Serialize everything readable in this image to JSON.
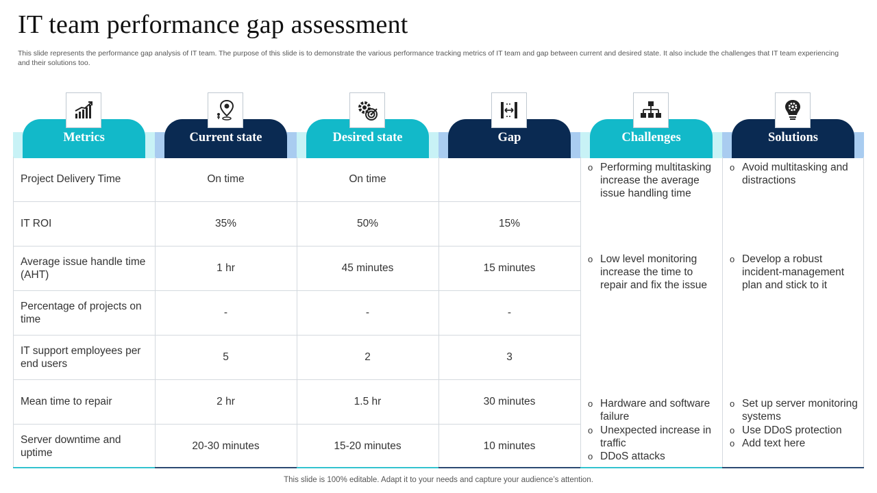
{
  "title": "IT team performance gap assessment",
  "description": "This slide represents the performance gap analysis of IT team. The purpose of this slide is to demonstrate the various performance tracking metrics of IT team and gap between current and desired state. It also include the challenges that IT team experiencing and their solutions too.",
  "columns": [
    {
      "label": "Metrics",
      "icon": "bar-chart-growth-icon",
      "style": "teal"
    },
    {
      "label": "Current state",
      "icon": "location-pin-person-icon",
      "style": "navy"
    },
    {
      "label": "Desired state",
      "icon": "gear-target-icon",
      "style": "teal"
    },
    {
      "label": "Gap",
      "icon": "gap-arrows-icon",
      "style": "navy"
    },
    {
      "label": "Challenges",
      "icon": "hierarchy-icon",
      "style": "teal"
    },
    {
      "label": "Solutions",
      "icon": "lightbulb-gear-icon",
      "style": "navy"
    }
  ],
  "rows": [
    {
      "metric": "Project Delivery Time",
      "current": "On time",
      "desired": "On time",
      "gap": ""
    },
    {
      "metric": "IT ROI",
      "current": "35%",
      "desired": "50%",
      "gap": "15%"
    },
    {
      "metric": "Average issue handle time (AHT)",
      "current": "1 hr",
      "desired": "45 minutes",
      "gap": "15 minutes"
    },
    {
      "metric": "Percentage of projects on time",
      "current": "-",
      "desired": "-",
      "gap": "-"
    },
    {
      "metric": "IT support employees per end users",
      "current": "5",
      "desired": "2",
      "gap": "3"
    },
    {
      "metric": "Mean time to repair",
      "current": "2 hr",
      "desired": "1.5 hr",
      "gap": "30 minutes"
    },
    {
      "metric": "Server downtime and uptime",
      "current": "20-30 minutes",
      "desired": "15-20 minutes",
      "gap": "10 minutes"
    }
  ],
  "challenges": [
    "Performing multitasking increase the average issue handling time",
    "Low level monitoring increase the time to repair and fix the issue",
    "Hardware and software failure",
    "Unexpected increase in traffic",
    "DDoS attacks"
  ],
  "solutions": [
    "Avoid multitasking and distractions",
    "Develop a robust incident-management plan and stick to it",
    "Set up server monitoring systems",
    "Use DDoS protection",
    "Add text here"
  ],
  "bullet_glyph": "o",
  "footer": "This slide is 100% editable. Adapt it to your needs and capture your audience’s attention.",
  "colors": {
    "teal": "#12b9c9",
    "navy": "#0a2a52",
    "teal_light": "#c8f2f6",
    "navy_light": "#a9ccf0"
  }
}
